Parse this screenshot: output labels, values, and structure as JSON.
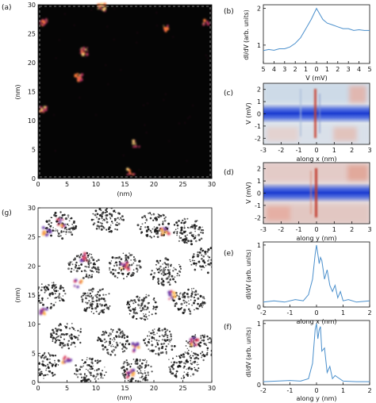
{
  "panels": [
    {
      "id": "a",
      "label": "(a)"
    },
    {
      "id": "b",
      "label": "(b)"
    },
    {
      "id": "c",
      "label": "(c)"
    },
    {
      "id": "d",
      "label": "(d)"
    },
    {
      "id": "e",
      "label": "(e)"
    },
    {
      "id": "f",
      "label": "(f)"
    },
    {
      "id": "g",
      "label": "(g)"
    }
  ],
  "colors": {
    "map_dark": "#050505",
    "line_blue": "#4a8fcc",
    "gap_blue": "#2244cc",
    "inferno_hot": "#ffb347"
  },
  "chart_data": [
    {
      "panel": "a",
      "type": "heatmap",
      "xlabel": "(nm)",
      "ylabel": "(nm)",
      "xlim": [
        0,
        30
      ],
      "ylim": [
        0,
        30
      ],
      "xticks": [
        "0",
        "5",
        "10",
        "15",
        "20",
        "25",
        "30"
      ],
      "yticks": [
        "0",
        "5",
        "10",
        "15",
        "20",
        "25",
        "30"
      ],
      "hotspots": [
        [
          1,
          27
        ],
        [
          11,
          29.5
        ],
        [
          8,
          22
        ],
        [
          7,
          17.5
        ],
        [
          1,
          12
        ],
        [
          17,
          6
        ],
        [
          16,
          1
        ],
        [
          29,
          27
        ],
        [
          22,
          26
        ]
      ]
    },
    {
      "panel": "b",
      "type": "line",
      "xlabel": "V (mV)",
      "ylabel": "dI/dV (arb. units)",
      "xlim": [
        5,
        -5
      ],
      "ylim": [
        0.5,
        2.1
      ],
      "xticks": [
        "5",
        "4",
        "3",
        "2",
        "1",
        "0",
        "1",
        "2",
        "3",
        "4",
        "5"
      ],
      "yticks": [
        "1",
        "2"
      ],
      "x": [
        5,
        4.5,
        4,
        3.5,
        3,
        2.5,
        2,
        1.5,
        1,
        0.5,
        0,
        -0.3,
        -0.6,
        -1,
        -1.5,
        -2,
        -2.5,
        -3,
        -3.5,
        -4,
        -4.5,
        -5
      ],
      "y": [
        0.85,
        0.88,
        0.86,
        0.9,
        0.9,
        0.95,
        1.05,
        1.2,
        1.45,
        1.7,
        2.0,
        1.85,
        1.7,
        1.6,
        1.55,
        1.5,
        1.45,
        1.45,
        1.4,
        1.42,
        1.4,
        1.4
      ]
    },
    {
      "panel": "c",
      "type": "heatmap",
      "xlabel": "along x (nm)",
      "ylabel": "V (mV)",
      "xlim": [
        -3,
        3
      ],
      "ylim": [
        -2.5,
        2.5
      ],
      "xticks": [
        "-3",
        "-2",
        "-1",
        "0",
        "1",
        "2",
        "3"
      ],
      "yticks": [
        "-2",
        "-1",
        "0",
        "1",
        "2"
      ]
    },
    {
      "panel": "d",
      "type": "heatmap",
      "xlabel": "along y (nm)",
      "ylabel": "V (mV)",
      "xlim": [
        -3,
        3
      ],
      "ylim": [
        -2.5,
        2.5
      ],
      "xticks": [
        "-3",
        "-2",
        "-1",
        "0",
        "1",
        "2",
        "3"
      ],
      "yticks": [
        "-2",
        "-1",
        "0",
        "1",
        "2"
      ]
    },
    {
      "panel": "e",
      "type": "line",
      "xlabel": "along x (nm)",
      "ylabel": "dI/dV (arb. units)",
      "xlim": [
        -2,
        2
      ],
      "ylim": [
        0,
        1.05
      ],
      "xticks": [
        "-2",
        "-1",
        "0",
        "1",
        "2"
      ],
      "yticks": [
        "0",
        "1"
      ],
      "x": [
        -2,
        -1.6,
        -1.2,
        -0.8,
        -0.5,
        -0.3,
        -0.15,
        -0.05,
        0,
        0.05,
        0.1,
        0.15,
        0.2,
        0.3,
        0.4,
        0.5,
        0.6,
        0.7,
        0.8,
        0.9,
        1.0,
        1.2,
        1.5,
        2
      ],
      "y": [
        0.08,
        0.1,
        0.08,
        0.12,
        0.1,
        0.2,
        0.45,
        0.85,
        1.0,
        0.85,
        0.7,
        0.8,
        0.75,
        0.45,
        0.6,
        0.35,
        0.25,
        0.35,
        0.15,
        0.25,
        0.1,
        0.12,
        0.08,
        0.1
      ]
    },
    {
      "panel": "f",
      "type": "line",
      "xlabel": "along y (nm)",
      "ylabel": "dI/dV (arb. units)",
      "xlim": [
        -2,
        2
      ],
      "ylim": [
        0,
        1.05
      ],
      "xticks": [
        "-2",
        "-1",
        "0",
        "1",
        "2"
      ],
      "yticks": [
        "0",
        "1"
      ],
      "x": [
        -2,
        -1.5,
        -1,
        -0.6,
        -0.3,
        -0.15,
        -0.05,
        0,
        0.05,
        0.1,
        0.15,
        0.2,
        0.3,
        0.4,
        0.5,
        0.6,
        0.7,
        1,
        1.5,
        2
      ],
      "y": [
        0.05,
        0.06,
        0.07,
        0.06,
        0.1,
        0.35,
        0.9,
        1.0,
        0.75,
        0.9,
        0.95,
        0.55,
        0.6,
        0.2,
        0.3,
        0.1,
        0.15,
        0.06,
        0.05,
        0.05
      ]
    },
    {
      "panel": "g",
      "type": "heatmap",
      "xlabel": "(nm)",
      "ylabel": "(nm)",
      "xlim": [
        0,
        30
      ],
      "ylim": [
        0,
        30
      ],
      "xticks": [
        "0",
        "5",
        "10",
        "15",
        "20",
        "25",
        "30"
      ],
      "yticks": [
        "0",
        "5",
        "10",
        "15",
        "20",
        "25",
        "30"
      ]
    }
  ]
}
